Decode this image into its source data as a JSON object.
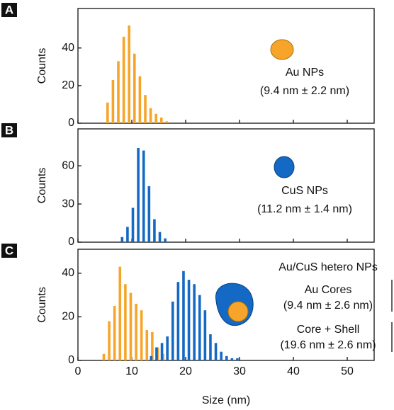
{
  "chart_data": [
    {
      "type": "bar",
      "panel": "A",
      "ylabel": "Counts",
      "xlim": [
        0,
        55
      ],
      "ylim": [
        0,
        61
      ],
      "yticks": [
        0,
        20,
        40
      ],
      "annotations": [
        "Au NPs",
        "(9.4 nm ± 2.2 nm)"
      ],
      "series": [
        {
          "color": "#f7a52a",
          "x": [
            5.5,
            6.5,
            7.5,
            8.5,
            9.5,
            10.5,
            11.5,
            12.5,
            13.5,
            14.5,
            15.5,
            16.5
          ],
          "values": [
            11,
            23,
            33,
            46,
            52,
            37,
            25,
            15,
            8,
            5,
            3,
            1
          ]
        }
      ]
    },
    {
      "type": "bar",
      "panel": "B",
      "ylabel": "Counts",
      "xlim": [
        0,
        55
      ],
      "ylim": [
        0,
        89
      ],
      "yticks": [
        0,
        30,
        60
      ],
      "annotations": [
        "CuS NPs",
        "(11.2 nm ± 1.4 nm)"
      ],
      "series": [
        {
          "color": "#1469c4",
          "x": [
            8.2,
            9.2,
            10.2,
            11.2,
            12.2,
            13.2,
            14.2,
            15.2,
            16.2
          ],
          "values": [
            4,
            12,
            27,
            74,
            72,
            44,
            18,
            8,
            3
          ]
        }
      ]
    },
    {
      "type": "bar",
      "panel": "C",
      "ylabel": "Counts",
      "xlabel": "Size (nm)",
      "xlim": [
        0,
        55
      ],
      "ylim": [
        0,
        51
      ],
      "yticks": [
        0,
        20,
        40
      ],
      "xticks": [
        0,
        10,
        20,
        30,
        40,
        50
      ],
      "annotations": [
        "Au/CuS hetero NPs",
        "Au Cores",
        "(9.4 nm ± 2.6 nm)",
        "Core + Shell",
        "(19.6 nm ± 2.6 nm)"
      ],
      "series": [
        {
          "color": "#f7a52a",
          "x": [
            4.8,
            5.8,
            6.8,
            7.8,
            8.8,
            9.8,
            10.8,
            11.8,
            12.8,
            13.8,
            14.8,
            15.8
          ],
          "values": [
            3,
            18,
            25,
            43,
            35,
            31,
            26,
            23,
            14,
            13,
            6,
            3
          ]
        },
        {
          "color": "#1469c4",
          "x": [
            13.6,
            14.6,
            15.6,
            16.6,
            17.6,
            18.6,
            19.6,
            20.6,
            21.6,
            22.6,
            23.6,
            24.6,
            25.6,
            26.6,
            27.6,
            28.6,
            29.6
          ],
          "values": [
            2,
            6,
            8,
            11,
            27,
            36,
            41,
            37,
            35,
            30,
            23,
            12,
            8,
            4,
            2,
            1,
            1
          ]
        }
      ]
    }
  ]
}
